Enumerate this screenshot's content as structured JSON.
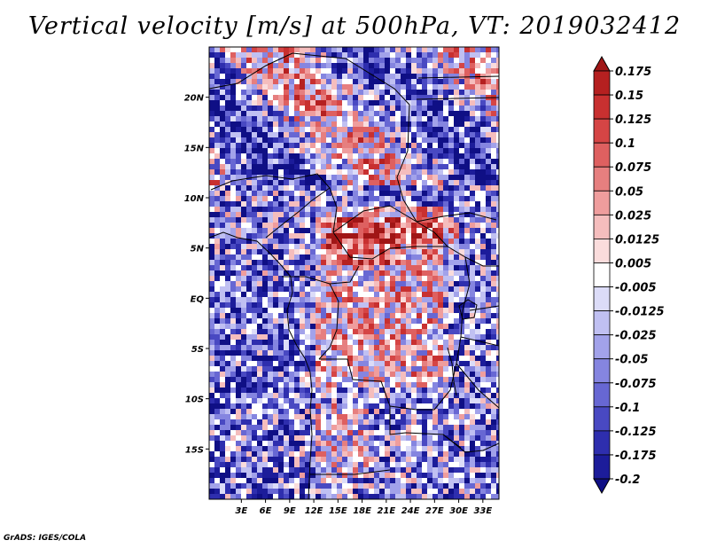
{
  "title": "Vertical velocity [m/s] at 500hPa, VT: 2019032412",
  "credit": "GrADS: IGES/COLA",
  "map": {
    "lon_range": [
      -1,
      35
    ],
    "lat_range": [
      -20,
      25
    ],
    "y_ticks": [
      {
        "lat": 20,
        "label": "20N"
      },
      {
        "lat": 15,
        "label": "15N"
      },
      {
        "lat": 10,
        "label": "10N"
      },
      {
        "lat": 5,
        "label": "5N"
      },
      {
        "lat": 0,
        "label": "EQ"
      },
      {
        "lat": -5,
        "label": "5S"
      },
      {
        "lat": -10,
        "label": "10S"
      },
      {
        "lat": -15,
        "label": "15S"
      }
    ],
    "x_ticks": [
      {
        "lon": 3,
        "label": "3E"
      },
      {
        "lon": 6,
        "label": "6E"
      },
      {
        "lon": 9,
        "label": "9E"
      },
      {
        "lon": 12,
        "label": "12E"
      },
      {
        "lon": 15,
        "label": "15E"
      },
      {
        "lon": 18,
        "label": "18E"
      },
      {
        "lon": 21,
        "label": "21E"
      },
      {
        "lon": 24,
        "label": "24E"
      },
      {
        "lon": 27,
        "label": "27E"
      },
      {
        "lon": 30,
        "label": "30E"
      },
      {
        "lon": 33,
        "label": "33E"
      }
    ]
  },
  "colorbar": {
    "labels": [
      "0.175",
      "0.15",
      "0.125",
      "0.1",
      "0.075",
      "0.05",
      "0.025",
      "0.0125",
      "0.005",
      "-0.005",
      "-0.0125",
      "-0.025",
      "-0.05",
      "-0.075",
      "-0.1",
      "-0.125",
      "-0.175",
      "-0.2"
    ],
    "colors": [
      "#a01616",
      "#b52020",
      "#c83030",
      "#d54545",
      "#de6060",
      "#e67f7f",
      "#ef9d9d",
      "#f5bdbd",
      "#fadcdc",
      "#ffffff",
      "#dcdcf8",
      "#c0c0f2",
      "#a2a2ea",
      "#8585e0",
      "#6767d3",
      "#4949c2",
      "#2e2eae",
      "#1c1c9a",
      "#0f0f85"
    ]
  }
}
